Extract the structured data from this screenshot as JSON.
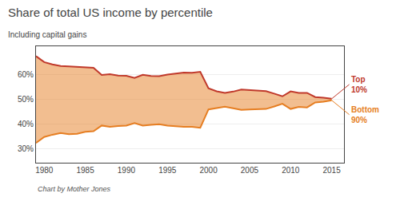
{
  "chart_data": {
    "type": "line",
    "title": "Share of total US income by percentile",
    "subtitle": "Including capital gains",
    "footer": "Chart by Mother Jones",
    "x": [
      1979,
      1980,
      1981,
      1982,
      1983,
      1984,
      1985,
      1986,
      1987,
      1988,
      1989,
      1990,
      1991,
      1992,
      1993,
      1994,
      1995,
      1996,
      1997,
      1998,
      1999,
      2000,
      2001,
      2002,
      2003,
      2004,
      2005,
      2006,
      2007,
      2008,
      2009,
      2010,
      2011,
      2012,
      2013,
      2014,
      2015
    ],
    "series": [
      {
        "name": "Top\n10%",
        "color": "#c0392b",
        "values": [
          0.675,
          0.651,
          0.642,
          0.635,
          0.634,
          0.632,
          0.63,
          0.628,
          0.599,
          0.602,
          0.597,
          0.596,
          0.587,
          0.6,
          0.595,
          0.594,
          0.601,
          0.606,
          0.609,
          0.608,
          0.612,
          0.545,
          0.533,
          0.527,
          0.532,
          0.54,
          0.538,
          0.535,
          0.534,
          0.524,
          0.513,
          0.533,
          0.527,
          0.527,
          0.51,
          0.507,
          0.503
        ]
      },
      {
        "name": "Bottom\n90%",
        "color": "#e67e22",
        "values": [
          0.325,
          0.349,
          0.358,
          0.365,
          0.36,
          0.362,
          0.37,
          0.372,
          0.395,
          0.39,
          0.393,
          0.395,
          0.405,
          0.395,
          0.398,
          0.4,
          0.395,
          0.392,
          0.39,
          0.39,
          0.386,
          0.46,
          0.465,
          0.471,
          0.465,
          0.458,
          0.46,
          0.462,
          0.462,
          0.472,
          0.483,
          0.462,
          0.47,
          0.468,
          0.488,
          0.491,
          0.497
        ]
      }
    ],
    "xlim": [
      1979,
      2016.5
    ],
    "xticks": [
      1980,
      1985,
      1990,
      1995,
      2000,
      2005,
      2010,
      2015
    ],
    "ylim": [
      0.245,
      0.715
    ],
    "yticks": [
      {
        "value": 0.3,
        "label": "30%"
      },
      {
        "value": 0.4,
        "label": "40%"
      },
      {
        "value": 0.5,
        "label": "50%"
      },
      {
        "value": 0.6,
        "label": "60%"
      }
    ],
    "grid": "y"
  }
}
